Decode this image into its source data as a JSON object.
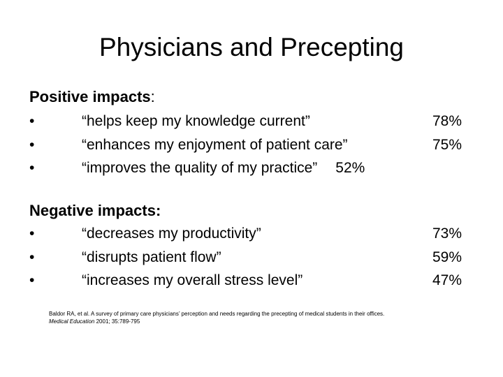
{
  "slide": {
    "title": "Physicians and Precepting"
  },
  "positive": {
    "heading": "Positive impacts",
    "heading_suffix": ":",
    "items": [
      {
        "text": "“helps keep my knowledge current”",
        "percent": "78%"
      },
      {
        "text": "“enhances my enjoyment of patient care”",
        "percent": "75%"
      },
      {
        "text": "“improves the quality of my practice”",
        "percent": "52%"
      }
    ]
  },
  "negative": {
    "heading": "Negative impacts:",
    "items": [
      {
        "text": "“decreases my productivity”",
        "percent": "73%"
      },
      {
        "text": "“disrupts patient flow”",
        "percent": "59%"
      },
      {
        "text": "“increases my overall stress level”",
        "percent": "47%"
      }
    ]
  },
  "bullet_glyph": "•",
  "citation": {
    "line1": "Baldor RA, et al. A survey of primary care physicians’ perception and needs regarding the precepting of medical students in their offices.",
    "journal": "Medical Education",
    "details": " 2001; 35:789-795"
  }
}
